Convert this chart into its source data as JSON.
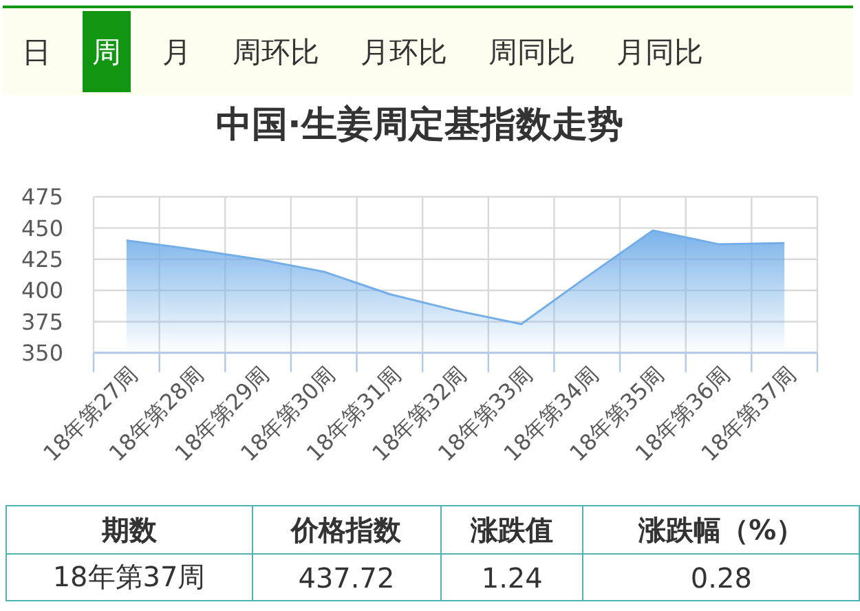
{
  "chart_data": [
    {
      "type": "other",
      "annotations": [
        "日",
        "周",
        "月",
        "周环比",
        "月环比",
        "周同比",
        "月同比"
      ]
    },
    {
      "type": "area",
      "title": "中国·生姜周定基指数走势",
      "categories": [
        "18年第27周",
        "18年第28周",
        "18年第29周",
        "18年第30周",
        "18年第31周",
        "18年第32周",
        "18年第33周",
        "18年第34周",
        "18年第35周",
        "18年第36周",
        "18年第37周"
      ],
      "series": [
        {
          "color": "#73aee8",
          "values": [
            440,
            433,
            425,
            415,
            397,
            384,
            373,
            411,
            448,
            437,
            438
          ]
        }
      ],
      "ylim": [
        350,
        475
      ],
      "yticks": [
        350,
        375,
        400,
        425,
        450,
        475
      ],
      "grid": true
    },
    {
      "type": "other",
      "categories": [
        "期数",
        "价格指数",
        "涨跌值",
        "涨跌幅（%）"
      ],
      "annotations": [
        "18年第37周",
        "437.72",
        "1.24",
        "0.28"
      ]
    }
  ]
}
